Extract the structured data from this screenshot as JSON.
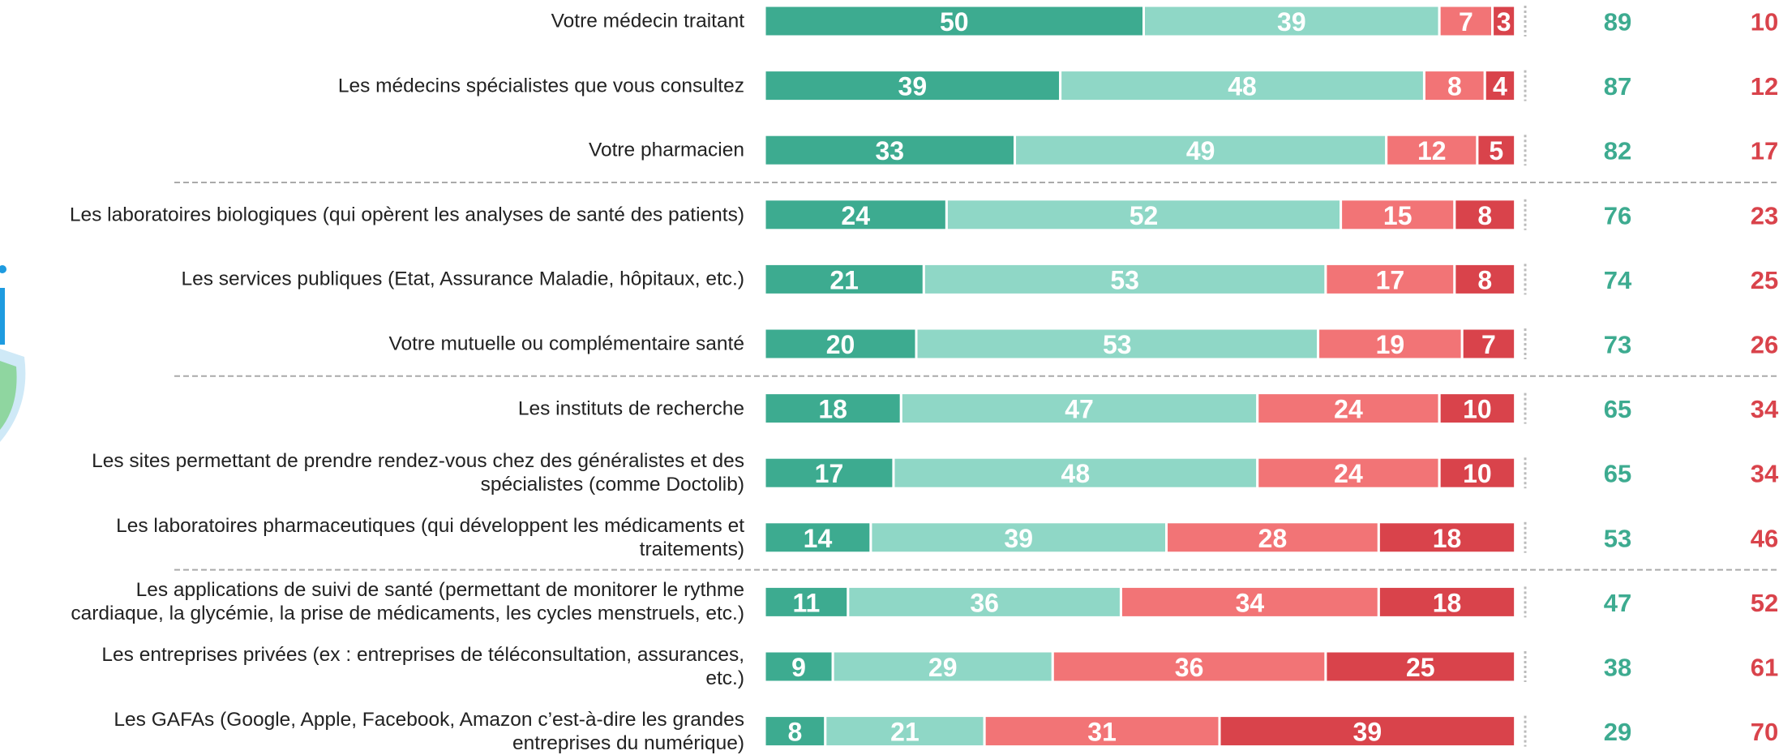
{
  "chart_data": {
    "type": "stacked-bar",
    "orientation": "horizontal",
    "categories": [
      "Votre médecin traitant",
      "Les médecins spécialistes que vous consultez",
      "Votre pharmacien",
      "Les laboratoires biologiques (qui opèrent les analyses de santé des patients)",
      "Les services publiques (Etat, Assurance Maladie, hôpitaux, etc.)",
      "Votre mutuelle ou complémentaire santé",
      "Les instituts de recherche",
      "Les sites permettant de prendre rendez-vous chez des généralistes et des\nspécialistes (comme Doctolib)",
      "Les laboratoires pharmaceutiques (qui développent les médicaments et\ntraitements)",
      "Les applications de suivi de santé (permettant de monitorer le rythme\ncardiaque, la glycémie, la prise de médicaments, les cycles menstruels, etc.)",
      "Les entreprises privées (ex : entreprises de téléconsultation, assurances,\netc.)",
      "Les GAFAs (Google, Apple, Facebook, Amazon c’est-à-dire les grandes\nentreprises du numérique)"
    ],
    "series": [
      {
        "color": "#3dab90",
        "values": [
          50,
          39,
          33,
          24,
          21,
          20,
          18,
          17,
          14,
          11,
          9,
          8
        ]
      },
      {
        "color": "#8fd7c6",
        "values": [
          39,
          48,
          49,
          52,
          53,
          53,
          47,
          48,
          39,
          36,
          29,
          21
        ]
      },
      {
        "color": "#f27476",
        "values": [
          7,
          8,
          12,
          15,
          17,
          19,
          24,
          24,
          28,
          34,
          36,
          31
        ]
      },
      {
        "color": "#d9434b",
        "values": [
          3,
          4,
          5,
          8,
          8,
          7,
          10,
          10,
          18,
          18,
          25,
          39
        ]
      }
    ],
    "totals": [
      {
        "color": "#3dab90",
        "values": [
          89,
          87,
          82,
          76,
          74,
          73,
          65,
          65,
          53,
          47,
          38,
          29
        ]
      },
      {
        "color": "#d9434b",
        "values": [
          10,
          12,
          17,
          23,
          25,
          26,
          34,
          34,
          46,
          52,
          61,
          70
        ]
      }
    ],
    "xlim": [
      0,
      100
    ]
  }
}
